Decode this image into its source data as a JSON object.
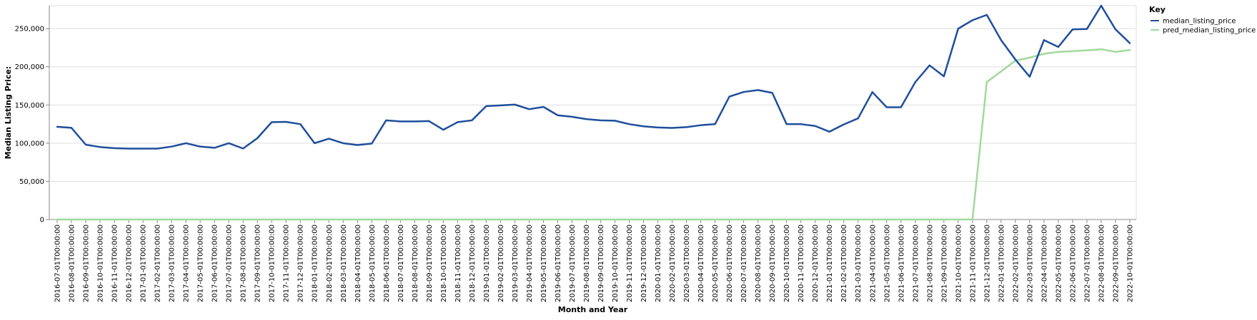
{
  "chart_data": {
    "type": "line",
    "xlabel": "Month and Year",
    "ylabel": "Median Listing Price:",
    "ylim": [
      0,
      280000
    ],
    "yticks": [
      0,
      50000,
      100000,
      150000,
      200000,
      250000
    ],
    "ytick_labels": [
      "0",
      "50,000",
      "100,000",
      "150,000",
      "200,000",
      "250,000"
    ],
    "grid": true,
    "legend": {
      "title": "Key",
      "position": "top-right"
    },
    "categories": [
      "2016-07-01T00:00:00",
      "2016-08-01T00:00:00",
      "2016-09-01T00:00:00",
      "2016-10-01T00:00:00",
      "2016-11-01T00:00:00",
      "2016-12-01T00:00:00",
      "2017-01-01T00:00:00",
      "2017-02-01T00:00:00",
      "2017-03-01T00:00:00",
      "2017-04-01T00:00:00",
      "2017-05-01T00:00:00",
      "2017-06-01T00:00:00",
      "2017-07-01T00:00:00",
      "2017-08-01T00:00:00",
      "2017-09-01T00:00:00",
      "2017-10-01T00:00:00",
      "2017-11-01T00:00:00",
      "2017-12-01T00:00:00",
      "2018-01-01T00:00:00",
      "2018-02-01T00:00:00",
      "2018-03-01T00:00:00",
      "2018-04-01T00:00:00",
      "2018-05-01T00:00:00",
      "2018-06-01T00:00:00",
      "2018-07-01T00:00:00",
      "2018-08-01T00:00:00",
      "2018-09-01T00:00:00",
      "2018-10-01T00:00:00",
      "2018-11-01T00:00:00",
      "2018-12-01T00:00:00",
      "2019-01-01T00:00:00",
      "2019-02-01T00:00:00",
      "2019-03-01T00:00:00",
      "2019-04-01T00:00:00",
      "2019-05-01T00:00:00",
      "2019-06-01T00:00:00",
      "2019-07-01T00:00:00",
      "2019-08-01T00:00:00",
      "2019-09-01T00:00:00",
      "2019-10-01T00:00:00",
      "2019-11-01T00:00:00",
      "2019-12-01T00:00:00",
      "2020-01-01T00:00:00",
      "2020-02-01T00:00:00",
      "2020-03-01T00:00:00",
      "2020-04-01T00:00:00",
      "2020-05-01T00:00:00",
      "2020-06-01T00:00:00",
      "2020-07-01T00:00:00",
      "2020-08-01T00:00:00",
      "2020-09-01T00:00:00",
      "2020-10-01T00:00:00",
      "2020-11-01T00:00:00",
      "2020-12-01T00:00:00",
      "2021-01-01T00:00:00",
      "2021-02-01T00:00:00",
      "2021-03-01T00:00:00",
      "2021-04-01T00:00:00",
      "2021-05-01T00:00:00",
      "2021-06-01T00:00:00",
      "2021-07-01T00:00:00",
      "2021-08-01T00:00:00",
      "2021-09-01T00:00:00",
      "2021-10-01T00:00:00",
      "2021-11-01T00:00:00",
      "2021-12-01T00:00:00",
      "2022-01-01T00:00:00",
      "2022-02-01T00:00:00",
      "2022-03-01T00:00:00",
      "2022-04-01T00:00:00",
      "2022-05-01T00:00:00",
      "2022-06-01T00:00:00",
      "2022-07-01T00:00:00",
      "2022-08-01T00:00:00",
      "2022-09-01T00:00:00",
      "2022-10-01T00:00:00"
    ],
    "series": [
      {
        "name": "median_listing_price",
        "color": "#1f4e9c",
        "values": [
          121500,
          120000,
          98000,
          94900,
          93500,
          92900,
          92900,
          92900,
          95500,
          99900,
          95500,
          93900,
          99900,
          93000,
          106500,
          127500,
          127900,
          124900,
          99900,
          105900,
          99900,
          97500,
          99500,
          129900,
          128400,
          128400,
          128900,
          117500,
          127500,
          129900,
          148500,
          149500,
          150500,
          144500,
          147500,
          136500,
          134500,
          131500,
          129900,
          129400,
          124900,
          122000,
          120500,
          119900,
          121000,
          123500,
          124900,
          160900,
          167000,
          169500,
          165900,
          124900,
          124900,
          122500,
          115000,
          124500,
          132500,
          166900,
          147000,
          147000,
          179900,
          201900,
          187500,
          249900,
          261000,
          268000,
          235000,
          209500,
          187000,
          235000,
          226000,
          249000,
          249500,
          280000,
          249000,
          231000
        ]
      },
      {
        "name": "pred_median_listing_price",
        "color": "#a1d99b",
        "values": [
          0,
          0,
          0,
          0,
          0,
          0,
          0,
          0,
          0,
          0,
          0,
          0,
          0,
          0,
          0,
          0,
          0,
          0,
          0,
          0,
          0,
          0,
          0,
          0,
          0,
          0,
          0,
          0,
          0,
          0,
          0,
          0,
          0,
          0,
          0,
          0,
          0,
          0,
          0,
          0,
          0,
          0,
          0,
          0,
          0,
          0,
          0,
          0,
          0,
          0,
          0,
          0,
          0,
          0,
          0,
          0,
          0,
          0,
          0,
          0,
          0,
          0,
          0,
          0,
          0,
          180000,
          194000,
          208000,
          212000,
          217000,
          219500,
          220500,
          221500,
          223000,
          219500,
          222000
        ]
      }
    ]
  }
}
